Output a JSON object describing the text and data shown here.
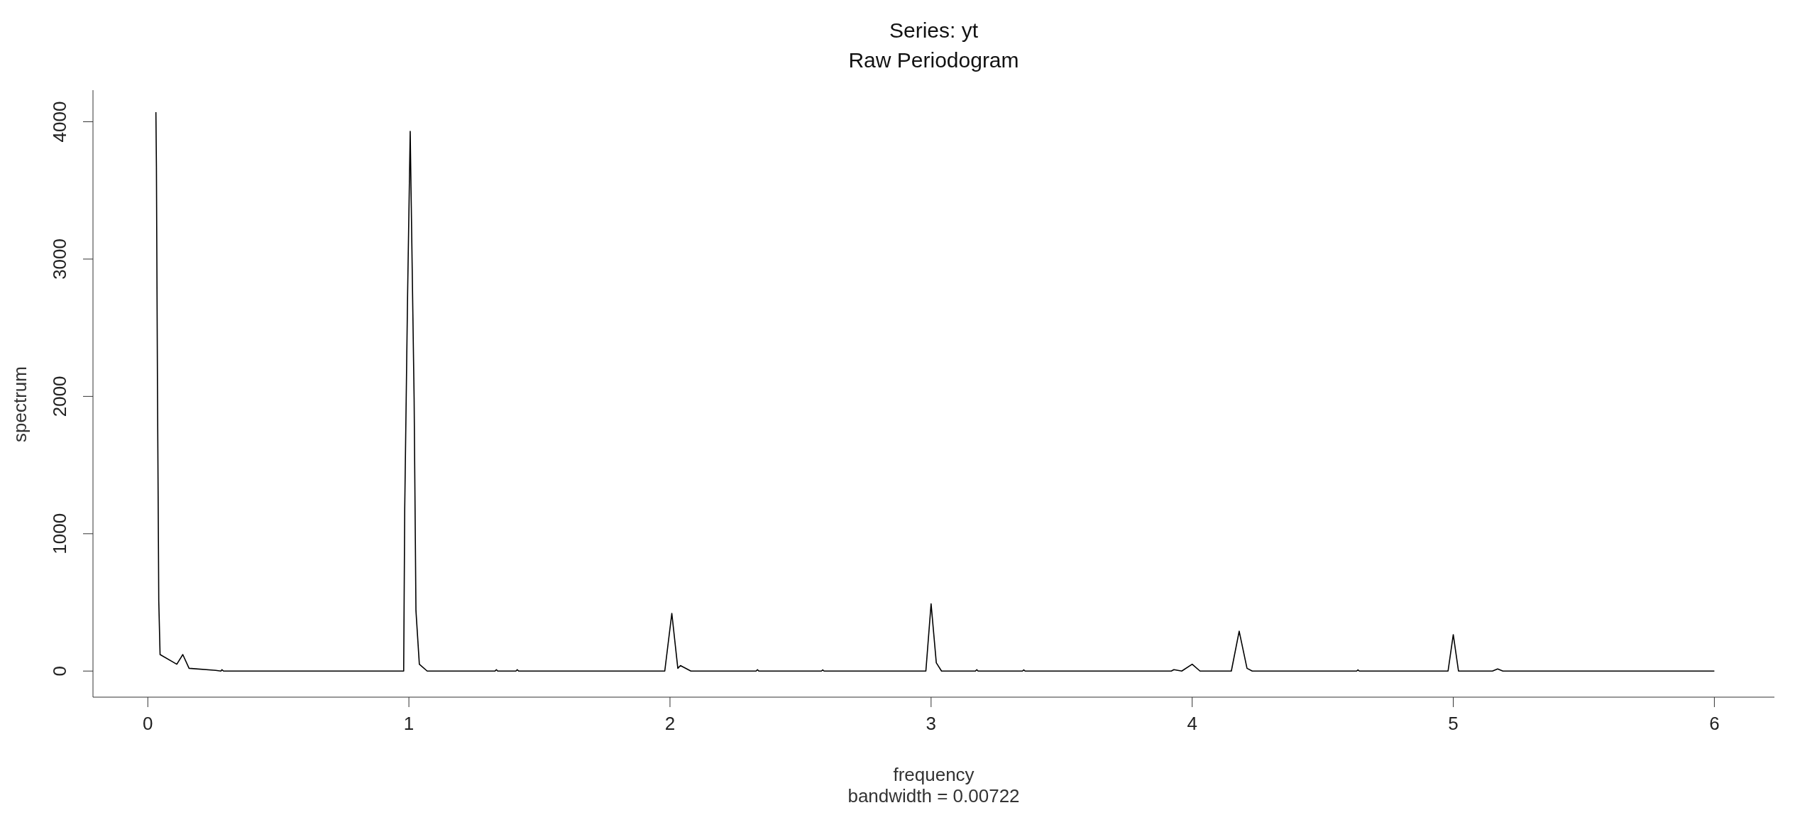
{
  "chart_data": {
    "type": "line",
    "title": "Series: yt",
    "subtitle": "Raw Periodogram",
    "xlabel": "frequency",
    "ylabel": "spectrum",
    "annotations": [
      "bandwidth = 0.00722"
    ],
    "color": "#000000",
    "x": [
      0.031,
      0.033,
      0.037,
      0.042,
      0.047,
      0.111,
      0.134,
      0.158,
      0.26,
      0.28,
      0.284,
      0.29,
      0.98,
      0.984,
      0.995,
      1.005,
      1.008,
      1.02,
      1.027,
      1.04,
      1.07,
      1.33,
      1.335,
      1.34,
      1.41,
      1.415,
      1.42,
      1.98,
      2.007,
      2.03,
      2.04,
      2.08,
      2.33,
      2.335,
      2.34,
      2.58,
      2.585,
      2.59,
      2.98,
      3.0,
      3.02,
      3.04,
      3.17,
      3.175,
      3.18,
      3.35,
      3.355,
      3.36,
      3.92,
      3.93,
      3.96,
      4.0,
      4.03,
      4.15,
      4.18,
      4.21,
      4.23,
      4.63,
      4.635,
      4.64,
      4.98,
      5.0,
      5.02,
      5.15,
      5.17,
      5.19,
      6.0
    ],
    "values": [
      4070,
      3670,
      2080,
      510,
      120,
      50,
      120,
      20,
      5,
      0,
      10,
      0,
      0,
      1180,
      2740,
      3930,
      3530,
      1980,
      440,
      50,
      0,
      0,
      10,
      0,
      0,
      10,
      0,
      0,
      420,
      20,
      40,
      0,
      0,
      10,
      0,
      0,
      8,
      0,
      0,
      490,
      60,
      0,
      0,
      10,
      0,
      0,
      8,
      0,
      0,
      10,
      0,
      50,
      0,
      0,
      290,
      20,
      0,
      0,
      8,
      0,
      0,
      265,
      0,
      0,
      15,
      0,
      0
    ],
    "xlim": [
      -0.21,
      6.23
    ],
    "ylim": [
      -190,
      4230
    ],
    "xticks": [
      0,
      1,
      2,
      3,
      4,
      5,
      6
    ],
    "yticks": [
      0,
      1000,
      2000,
      3000,
      4000
    ]
  }
}
